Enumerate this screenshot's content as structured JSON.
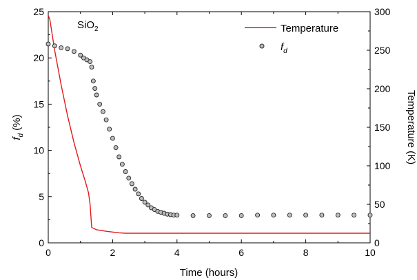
{
  "chart_data": {
    "type": "scatter",
    "annotation": {
      "main": "SiO",
      "sub": "2"
    },
    "xlabel": "Time (hours)",
    "ylabel_left": {
      "main": "f",
      "sub": "d",
      "rest": " (%)"
    },
    "ylabel_right": "Temperature (K)",
    "xlim": [
      0,
      10
    ],
    "ylim_left": [
      0,
      25
    ],
    "ylim_right": [
      0,
      300
    ],
    "x_ticks": [
      0,
      2,
      4,
      6,
      8,
      10
    ],
    "y_left_ticks": [
      0,
      5,
      10,
      15,
      20,
      25
    ],
    "y_right_ticks": [
      0,
      50,
      100,
      150,
      200,
      250,
      300
    ],
    "grid": false,
    "legend_position": "top-right",
    "series": [
      {
        "name": "Temperature",
        "axis": "right",
        "style": "line",
        "color": "#e31a1c",
        "x": [
          0.0,
          0.05,
          0.2,
          0.4,
          0.6,
          0.8,
          1.0,
          1.15,
          1.25,
          1.3,
          1.35,
          1.5,
          1.8,
          2.0,
          2.2,
          2.4,
          3.0,
          4.0,
          6.0,
          8.0,
          10.0
        ],
        "y": [
          295,
          290,
          250,
          205,
          165,
          130,
          100,
          80,
          65,
          50,
          20,
          17,
          15,
          14,
          13,
          12.5,
          12.5,
          12.5,
          12.5,
          12.5,
          12.5
        ]
      },
      {
        "name": "f",
        "name_sub": "d",
        "axis": "left",
        "style": "markers",
        "color": "#555555",
        "x": [
          0.0,
          0.2,
          0.4,
          0.6,
          0.8,
          1.0,
          1.1,
          1.2,
          1.3,
          1.35,
          1.4,
          1.45,
          1.5,
          1.6,
          1.7,
          1.8,
          1.9,
          2.0,
          2.1,
          2.2,
          2.3,
          2.4,
          2.5,
          2.6,
          2.7,
          2.8,
          2.9,
          3.0,
          3.1,
          3.2,
          3.3,
          3.4,
          3.5,
          3.6,
          3.7,
          3.8,
          3.9,
          4.0,
          4.5,
          5.0,
          5.5,
          6.0,
          6.5,
          7.0,
          7.5,
          8.0,
          8.5,
          9.0,
          9.5,
          10.0
        ],
        "y": [
          21.5,
          21.3,
          21.1,
          21.0,
          20.7,
          20.3,
          20.0,
          19.8,
          19.6,
          19.0,
          17.5,
          16.7,
          16.0,
          15.0,
          14.2,
          13.3,
          12.3,
          11.3,
          10.3,
          9.3,
          8.5,
          7.7,
          7.0,
          6.4,
          5.8,
          5.3,
          4.8,
          4.4,
          4.1,
          3.8,
          3.6,
          3.4,
          3.3,
          3.2,
          3.1,
          3.05,
          3.0,
          3.0,
          2.95,
          2.95,
          2.95,
          2.95,
          3.0,
          3.0,
          3.0,
          3.0,
          3.0,
          3.0,
          3.0,
          3.0
        ]
      }
    ]
  }
}
